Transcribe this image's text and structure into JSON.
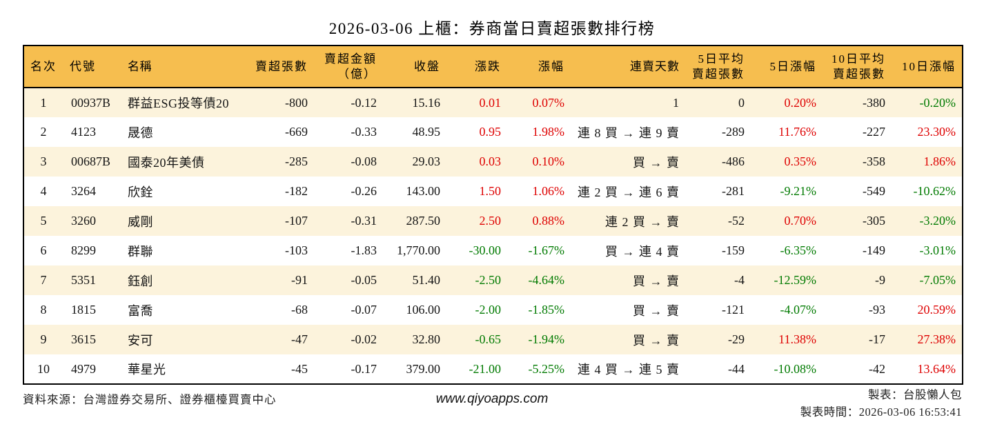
{
  "colors": {
    "header_bg": "#F6BE4F",
    "row_stripe": "#FCF3DC",
    "up_red": "#DE0000",
    "down_green": "#007A00",
    "border": "#000000"
  },
  "chart_data": {
    "type": "table",
    "title": "2026-03-06 上櫃：券商當日賣超張數排行榜",
    "columns": [
      {
        "key": "rank",
        "label": "名次"
      },
      {
        "key": "code",
        "label": "代號"
      },
      {
        "key": "name",
        "label": "名稱"
      },
      {
        "key": "sell_volume",
        "label": "賣超張數"
      },
      {
        "key": "sell_amount",
        "label": "賣超金額\n（億）"
      },
      {
        "key": "close",
        "label": "收盤"
      },
      {
        "key": "change",
        "label": "漲跌"
      },
      {
        "key": "change_pct",
        "label": "漲幅"
      },
      {
        "key": "streak",
        "label": "連賣天數"
      },
      {
        "key": "avg5",
        "label": "5日平均\n賣超張數"
      },
      {
        "key": "pct5",
        "label": "5日漲幅"
      },
      {
        "key": "avg10",
        "label": "10日平均\n賣超張數"
      },
      {
        "key": "pct10",
        "label": "10日漲幅"
      }
    ],
    "rows": [
      {
        "rank": "1",
        "code": "00937B",
        "name": "群益ESG投等債20",
        "sell_volume": "-800",
        "sell_amount": "-0.12",
        "close": "15.16",
        "change": {
          "t": "0.01",
          "c": "red"
        },
        "change_pct": {
          "t": "0.07%",
          "c": "red"
        },
        "streak": "1",
        "avg5": "0",
        "pct5": {
          "t": "0.20%",
          "c": "red"
        },
        "avg10": "-380",
        "pct10": {
          "t": "-0.20%",
          "c": "green"
        }
      },
      {
        "rank": "2",
        "code": "4123",
        "name": "晟德",
        "sell_volume": "-669",
        "sell_amount": "-0.33",
        "close": "48.95",
        "change": {
          "t": "0.95",
          "c": "red"
        },
        "change_pct": {
          "t": "1.98%",
          "c": "red"
        },
        "streak": "連 8 買 → 連 9 賣",
        "avg5": "-289",
        "pct5": {
          "t": "11.76%",
          "c": "red"
        },
        "avg10": "-227",
        "pct10": {
          "t": "23.30%",
          "c": "red"
        }
      },
      {
        "rank": "3",
        "code": "00687B",
        "name": "國泰20年美債",
        "sell_volume": "-285",
        "sell_amount": "-0.08",
        "close": "29.03",
        "change": {
          "t": "0.03",
          "c": "red"
        },
        "change_pct": {
          "t": "0.10%",
          "c": "red"
        },
        "streak": "買 → 賣",
        "avg5": "-486",
        "pct5": {
          "t": "0.35%",
          "c": "red"
        },
        "avg10": "-358",
        "pct10": {
          "t": "1.86%",
          "c": "red"
        }
      },
      {
        "rank": "4",
        "code": "3264",
        "name": "欣銓",
        "sell_volume": "-182",
        "sell_amount": "-0.26",
        "close": "143.00",
        "change": {
          "t": "1.50",
          "c": "red"
        },
        "change_pct": {
          "t": "1.06%",
          "c": "red"
        },
        "streak": "連 2 買 → 連 6 賣",
        "avg5": "-281",
        "pct5": {
          "t": "-9.21%",
          "c": "green"
        },
        "avg10": "-549",
        "pct10": {
          "t": "-10.62%",
          "c": "green"
        }
      },
      {
        "rank": "5",
        "code": "3260",
        "name": "威剛",
        "sell_volume": "-107",
        "sell_amount": "-0.31",
        "close": "287.50",
        "change": {
          "t": "2.50",
          "c": "red"
        },
        "change_pct": {
          "t": "0.88%",
          "c": "red"
        },
        "streak": "連 2 買 → 賣",
        "avg5": "-52",
        "pct5": {
          "t": "0.70%",
          "c": "red"
        },
        "avg10": "-305",
        "pct10": {
          "t": "-3.20%",
          "c": "green"
        }
      },
      {
        "rank": "6",
        "code": "8299",
        "name": "群聯",
        "sell_volume": "-103",
        "sell_amount": "-1.83",
        "close": "1,770.00",
        "change": {
          "t": "-30.00",
          "c": "green"
        },
        "change_pct": {
          "t": "-1.67%",
          "c": "green"
        },
        "streak": "買 → 連 4 賣",
        "avg5": "-159",
        "pct5": {
          "t": "-6.35%",
          "c": "green"
        },
        "avg10": "-149",
        "pct10": {
          "t": "-3.01%",
          "c": "green"
        }
      },
      {
        "rank": "7",
        "code": "5351",
        "name": "鈺創",
        "sell_volume": "-91",
        "sell_amount": "-0.05",
        "close": "51.40",
        "change": {
          "t": "-2.50",
          "c": "green"
        },
        "change_pct": {
          "t": "-4.64%",
          "c": "green"
        },
        "streak": "買 → 賣",
        "avg5": "-4",
        "pct5": {
          "t": "-12.59%",
          "c": "green"
        },
        "avg10": "-9",
        "pct10": {
          "t": "-7.05%",
          "c": "green"
        }
      },
      {
        "rank": "8",
        "code": "1815",
        "name": "富喬",
        "sell_volume": "-68",
        "sell_amount": "-0.07",
        "close": "106.00",
        "change": {
          "t": "-2.00",
          "c": "green"
        },
        "change_pct": {
          "t": "-1.85%",
          "c": "green"
        },
        "streak": "買 → 賣",
        "avg5": "-121",
        "pct5": {
          "t": "-4.07%",
          "c": "green"
        },
        "avg10": "-93",
        "pct10": {
          "t": "20.59%",
          "c": "red"
        }
      },
      {
        "rank": "9",
        "code": "3615",
        "name": "安可",
        "sell_volume": "-47",
        "sell_amount": "-0.02",
        "close": "32.80",
        "change": {
          "t": "-0.65",
          "c": "green"
        },
        "change_pct": {
          "t": "-1.94%",
          "c": "green"
        },
        "streak": "買 → 賣",
        "avg5": "-29",
        "pct5": {
          "t": "11.38%",
          "c": "red"
        },
        "avg10": "-17",
        "pct10": {
          "t": "27.38%",
          "c": "red"
        }
      },
      {
        "rank": "10",
        "code": "4979",
        "name": "華星光",
        "sell_volume": "-45",
        "sell_amount": "-0.17",
        "close": "379.00",
        "change": {
          "t": "-21.00",
          "c": "green"
        },
        "change_pct": {
          "t": "-5.25%",
          "c": "green"
        },
        "streak": "連 4 買 → 連 5 賣",
        "avg5": "-44",
        "pct5": {
          "t": "-10.08%",
          "c": "green"
        },
        "avg10": "-42",
        "pct10": {
          "t": "13.64%",
          "c": "red"
        }
      }
    ]
  },
  "footer": {
    "source": "資料來源：台灣證券交易所、證券櫃檯買賣中心",
    "website": "www.qiyoapps.com",
    "maker": "製表：台股懶人包",
    "time": "製表時間：2026-03-06 16:53:41"
  }
}
